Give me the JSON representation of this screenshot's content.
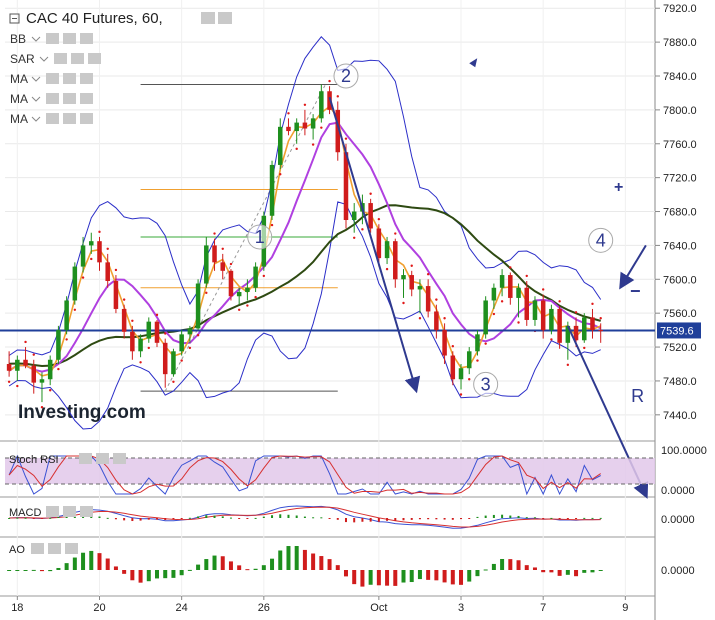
{
  "chart_data": {
    "type": "candlestick",
    "title": "CAC 40 Futures, 60,",
    "watermark": "Investing.com",
    "price_axis": {
      "ticks": [
        7440,
        7480,
        7520,
        7560,
        7600,
        7640,
        7680,
        7720,
        7760,
        7800,
        7840,
        7880,
        7920
      ],
      "tick_labels": [
        "7440.0",
        "7480.0",
        "7520.0",
        "7560.0",
        "7600.0",
        "7640.0",
        "7680.0",
        "7720.0",
        "7760.0",
        "7800.0",
        "7840.0",
        "7880.0",
        "7920.0"
      ],
      "ylim": [
        7415,
        7925
      ]
    },
    "last_price": {
      "value": 7539.6,
      "label": "7539.6",
      "color": "#1f3f9a"
    },
    "horizontal_line": 7539.6,
    "x_axis": {
      "labels": [
        "18",
        "20",
        "24",
        "26",
        "Oct",
        "3",
        "7",
        "9"
      ],
      "label_positions": [
        1,
        11,
        21,
        31,
        45,
        55,
        65,
        75
      ],
      "xlim": [
        -0.5,
        78
      ]
    },
    "indicators": [
      "BB",
      "SAR",
      "MA",
      "MA",
      "MA"
    ],
    "fib_levels": [
      7830,
      7706,
      7650,
      7590,
      7468
    ],
    "wave_labels": [
      {
        "text": "1",
        "x": 30.5,
        "y": 7650
      },
      {
        "text": "2",
        "x": 41,
        "y": 7840
      },
      {
        "text": "3",
        "x": 58,
        "y": 7476
      },
      {
        "text": "4",
        "x": 72,
        "y": 7646
      },
      {
        "text": "R",
        "x": 76.5,
        "y": 7462
      }
    ],
    "annotations": [
      "+",
      "−"
    ],
    "candles": [
      [
        7500,
        7515,
        7485,
        7492
      ],
      [
        7492,
        7510,
        7480,
        7505
      ],
      [
        7505,
        7520,
        7495,
        7498
      ],
      [
        7498,
        7505,
        7465,
        7478
      ],
      [
        7478,
        7490,
        7455,
        7482
      ],
      [
        7482,
        7510,
        7475,
        7505
      ],
      [
        7505,
        7545,
        7500,
        7540
      ],
      [
        7540,
        7580,
        7535,
        7575
      ],
      [
        7575,
        7620,
        7570,
        7615
      ],
      [
        7615,
        7650,
        7608,
        7640
      ],
      [
        7640,
        7655,
        7630,
        7645
      ],
      [
        7645,
        7650,
        7610,
        7620
      ],
      [
        7620,
        7630,
        7590,
        7598
      ],
      [
        7598,
        7605,
        7560,
        7565
      ],
      [
        7565,
        7570,
        7530,
        7538
      ],
      [
        7538,
        7545,
        7505,
        7515
      ],
      [
        7515,
        7535,
        7508,
        7530
      ],
      [
        7530,
        7555,
        7525,
        7550
      ],
      [
        7550,
        7552,
        7520,
        7525
      ],
      [
        7525,
        7530,
        7472,
        7488
      ],
      [
        7488,
        7518,
        7485,
        7515
      ],
      [
        7515,
        7540,
        7510,
        7535
      ],
      [
        7535,
        7545,
        7525,
        7542
      ],
      [
        7542,
        7600,
        7540,
        7595
      ],
      [
        7595,
        7650,
        7590,
        7640
      ],
      [
        7640,
        7648,
        7610,
        7620
      ],
      [
        7620,
        7630,
        7600,
        7610
      ],
      [
        7610,
        7612,
        7575,
        7580
      ],
      [
        7580,
        7590,
        7570,
        7585
      ],
      [
        7585,
        7600,
        7575,
        7590
      ],
      [
        7590,
        7620,
        7585,
        7615
      ],
      [
        7615,
        7680,
        7610,
        7675
      ],
      [
        7675,
        7740,
        7670,
        7735
      ],
      [
        7735,
        7790,
        7730,
        7780
      ],
      [
        7780,
        7790,
        7770,
        7775
      ],
      [
        7775,
        7790,
        7760,
        7785
      ],
      [
        7785,
        7800,
        7770,
        7778
      ],
      [
        7778,
        7795,
        7765,
        7790
      ],
      [
        7790,
        7830,
        7785,
        7822
      ],
      [
        7822,
        7828,
        7795,
        7800
      ],
      [
        7800,
        7810,
        7740,
        7750
      ],
      [
        7750,
        7760,
        7660,
        7670
      ],
      [
        7670,
        7690,
        7655,
        7680
      ],
      [
        7680,
        7700,
        7665,
        7690
      ],
      [
        7690,
        7695,
        7655,
        7660
      ],
      [
        7660,
        7665,
        7615,
        7625
      ],
      [
        7625,
        7650,
        7618,
        7645
      ],
      [
        7645,
        7648,
        7590,
        7600
      ],
      [
        7600,
        7612,
        7578,
        7605
      ],
      [
        7605,
        7610,
        7580,
        7588
      ],
      [
        7588,
        7600,
        7560,
        7592
      ],
      [
        7592,
        7600,
        7555,
        7562
      ],
      [
        7562,
        7570,
        7530,
        7540
      ],
      [
        7540,
        7548,
        7500,
        7510
      ],
      [
        7510,
        7515,
        7475,
        7482
      ],
      [
        7482,
        7500,
        7470,
        7495
      ],
      [
        7495,
        7520,
        7488,
        7515
      ],
      [
        7515,
        7540,
        7510,
        7535
      ],
      [
        7535,
        7580,
        7530,
        7575
      ],
      [
        7575,
        7595,
        7565,
        7590
      ],
      [
        7590,
        7612,
        7580,
        7605
      ],
      [
        7605,
        7608,
        7570,
        7578
      ],
      [
        7578,
        7595,
        7555,
        7590
      ],
      [
        7590,
        7598,
        7545,
        7552
      ],
      [
        7552,
        7580,
        7545,
        7575
      ],
      [
        7575,
        7582,
        7530,
        7540
      ],
      [
        7540,
        7570,
        7535,
        7565
      ],
      [
        7565,
        7568,
        7518,
        7525
      ],
      [
        7525,
        7550,
        7505,
        7545
      ],
      [
        7545,
        7555,
        7520,
        7528
      ],
      [
        7528,
        7560,
        7525,
        7555
      ],
      [
        7555,
        7565,
        7530,
        7540
      ],
      [
        7540,
        7548,
        7525,
        7539.6
      ]
    ],
    "colors": {
      "up": "#1e8f1e",
      "down": "#d01c1c",
      "bb": "#2b2ec8",
      "ma_fast": "#f0a030",
      "ma_mid": "#b040e0",
      "ma_slow": "#2e4a12",
      "sar": "#e01818",
      "hline": "#1f3f9a",
      "arrows": "#2f3a8f"
    }
  },
  "panels": {
    "stoch_rsi": {
      "label": "Stoch RSI",
      "ticks": [
        "100.0000",
        "0.0000"
      ],
      "bands": [
        80,
        20
      ]
    },
    "macd": {
      "label": "MACD",
      "ticks": [
        "0.0000"
      ]
    },
    "ao": {
      "label": "AO",
      "ticks": [
        "0.0000"
      ]
    }
  }
}
